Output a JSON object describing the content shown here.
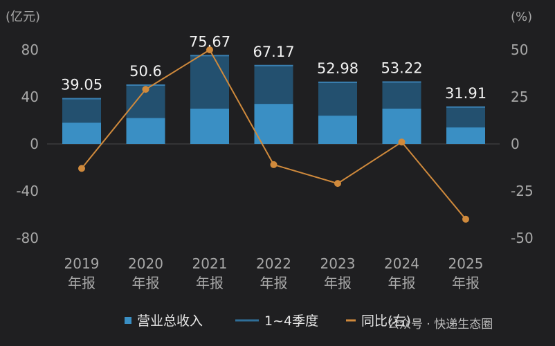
{
  "chart_data": {
    "type": "bar",
    "categories": [
      "2019\n年报",
      "2020\n年报",
      "2021\n年报",
      "2022\n年报",
      "2023\n年报",
      "2024\n年报",
      "2025\n年报"
    ],
    "series": [
      {
        "name": "营业总收入",
        "kind": "bar",
        "axis": "left",
        "color": "#2f6f99",
        "values": [
          39.05,
          50.6,
          75.67,
          67.17,
          52.98,
          53.22,
          31.91
        ]
      },
      {
        "name": "1~4季度",
        "kind": "bar-segment",
        "axis": "left",
        "color": "#3a8fc4",
        "values": [
          18,
          22,
          30,
          34,
          24,
          30,
          14
        ]
      },
      {
        "name": "同比(右)",
        "kind": "line",
        "axis": "right",
        "color": "#d08a3c",
        "values": [
          -13,
          29,
          50,
          -11,
          -21,
          1,
          -40
        ]
      }
    ],
    "data_labels": [
      "39.05",
      "50.6",
      "75.67",
      "67.17",
      "52.98",
      "53.22",
      "31.91"
    ],
    "y_left": {
      "unit": "(亿元)",
      "ticks": [
        "80",
        "40",
        "0",
        "-40",
        "-80"
      ],
      "range": [
        -80,
        80
      ]
    },
    "y_right": {
      "unit": "(%)",
      "ticks": [
        "50",
        "25",
        "0",
        "-25",
        "-50"
      ],
      "range": [
        -50,
        50
      ]
    },
    "legend_position": "bottom",
    "grid": false
  },
  "watermark": "公众号 · 快递生态圈"
}
